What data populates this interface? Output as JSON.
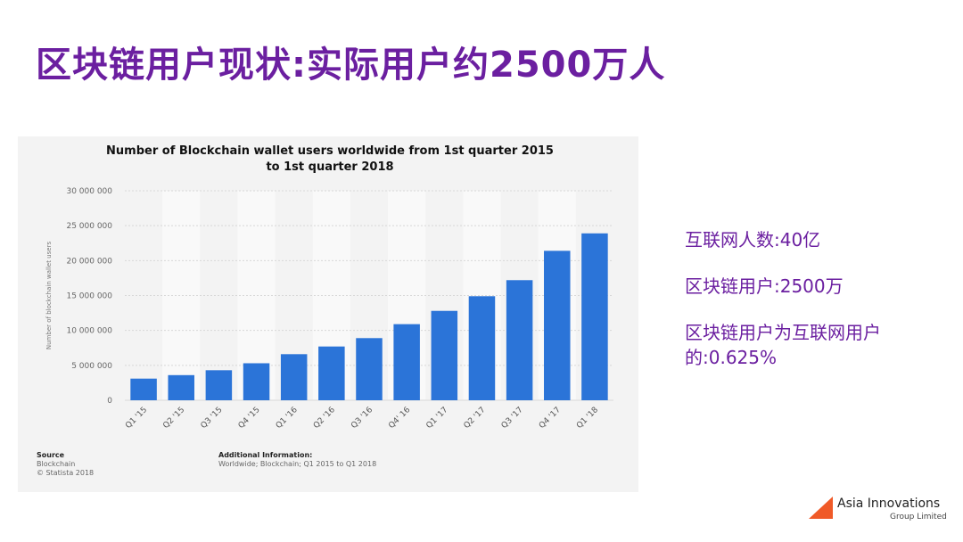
{
  "slide": {
    "title": "区块链用户现状:实际用户约2500万人"
  },
  "side_notes": [
    "互联网人数:40亿",
    "区块链用户:2500万",
    "区块链用户为互联网用户的:0.625%"
  ],
  "chart_source": {
    "heading": "Source",
    "line1": "Blockchain",
    "line2": "© Statista 2018"
  },
  "chart_info": {
    "heading": "Additional Information:",
    "text": "Worldwide; Blockchain; Q1 2015 to Q1 2018"
  },
  "logo": {
    "name": "Asia Innovations",
    "sub": "Group Limited"
  },
  "colors": {
    "title": "#6b1fa0",
    "bar": "#2b74d8",
    "logo": "#f05a28"
  },
  "chart_data": {
    "type": "bar",
    "title_line1": "Number of Blockchain wallet users worldwide from 1st quarter 2015",
    "title_line2": "to 1st quarter 2018",
    "ylabel": "Number of blockchain wallet users",
    "xlabel": "",
    "categories": [
      "Q1 '15",
      "Q2 '15",
      "Q3 '15",
      "Q4 '15",
      "Q1 '16",
      "Q2 '16",
      "Q3 '16",
      "Q4' 16",
      "Q1 '17",
      "Q2 '17",
      "Q3 '17",
      "Q4 '17",
      "Q1 '18"
    ],
    "values": [
      3100000,
      3600000,
      4300000,
      5300000,
      6600000,
      7700000,
      8900000,
      10900000,
      12800000,
      14900000,
      17200000,
      21400000,
      23900000
    ],
    "ylim": [
      0,
      30000000
    ],
    "yticks": [
      0,
      5000000,
      10000000,
      15000000,
      20000000,
      25000000,
      30000000
    ],
    "ytick_labels": [
      "0",
      "5 000 000",
      "10 000 000",
      "15 000 000",
      "20 000 000",
      "25 000 000",
      "30 000 000"
    ],
    "grid": true
  }
}
